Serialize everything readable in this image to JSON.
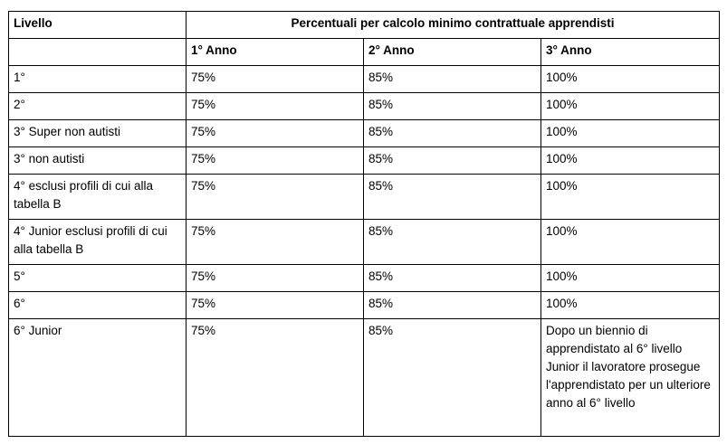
{
  "table": {
    "header_row1": {
      "level_label": "Livello",
      "group_label": "Percentuali per calcolo minimo contrattuale apprendisti"
    },
    "header_row2": [
      "1° Anno",
      "2° Anno",
      "3° Anno"
    ],
    "rows": [
      {
        "level": "1°",
        "y1": "75%",
        "y2": "85%",
        "y3": "100%"
      },
      {
        "level": "2°",
        "y1": "75%",
        "y2": "85%",
        "y3": "100%"
      },
      {
        "level": "3° Super non autisti",
        "y1": "75%",
        "y2": "85%",
        "y3": "100%"
      },
      {
        "level": "3° non autisti",
        "y1": "75%",
        "y2": "85%",
        "y3": "100%"
      },
      {
        "level": "4° esclusi profili di cui alla tabella B",
        "y1": "75%",
        "y2": "85%",
        "y3": "100%"
      },
      {
        "level": "4° Junior esclusi profili di cui alla tabella B",
        "y1": "75%",
        "y2": "85%",
        "y3": "100%"
      },
      {
        "level": "5°",
        "y1": "75%",
        "y2": "85%",
        "y3": "100%"
      },
      {
        "level": "6°",
        "y1": "75%",
        "y2": "85%",
        "y3": "100%"
      },
      {
        "level": "6° Junior",
        "y1": "75%",
        "y2": "85%",
        "y3": "Dopo un biennio di apprendistato al 6° livello Junior il lavoratore prosegue l'apprendistato per un ulteriore anno al 6° livello"
      }
    ]
  }
}
